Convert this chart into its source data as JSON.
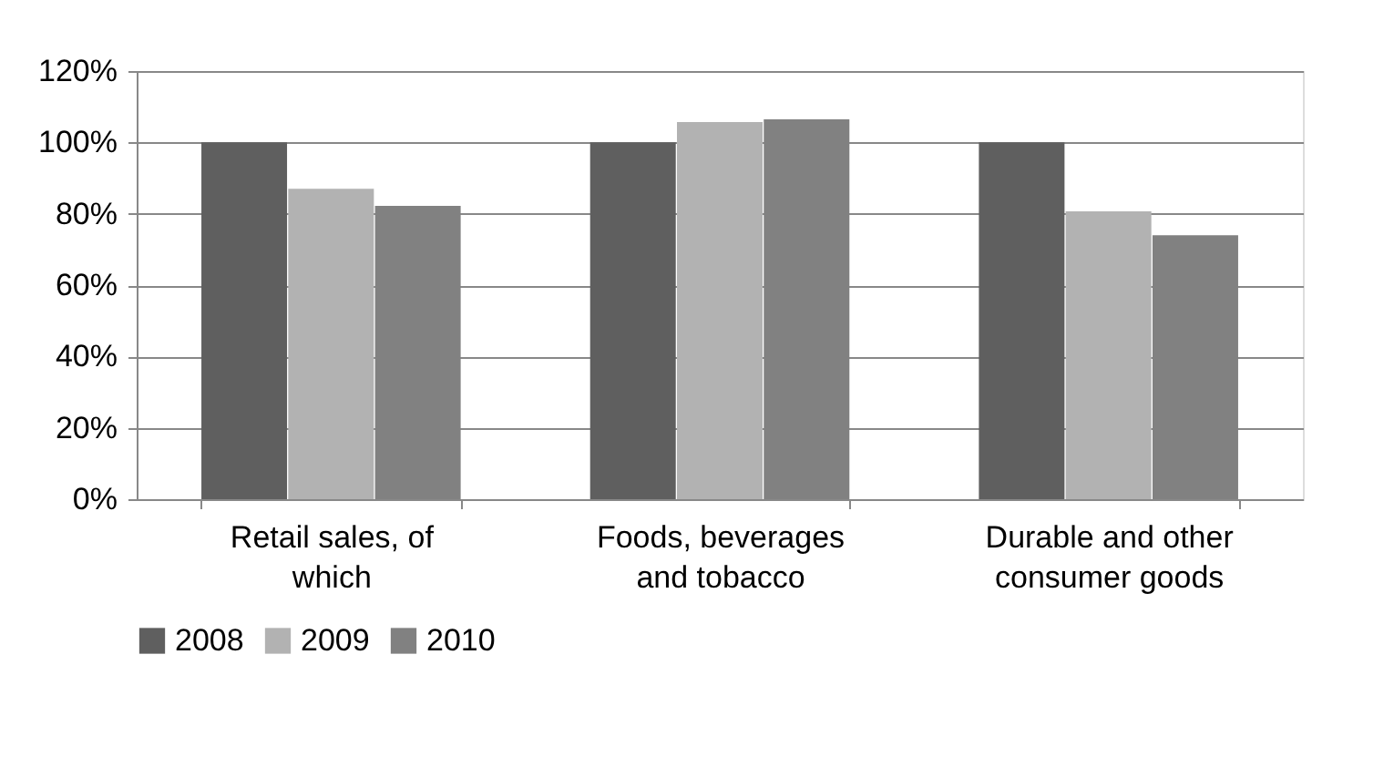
{
  "chart_data": {
    "type": "bar",
    "categories": [
      "Retail sales, of which",
      "Foods, beverages and tobacco",
      "Durable and other consumer goods"
    ],
    "series": [
      {
        "name": "2008",
        "color": "#5f5f5f",
        "values": [
          100,
          100,
          100
        ]
      },
      {
        "name": "2009",
        "color": "#b2b2b2",
        "values": [
          87,
          105.7,
          80.7
        ]
      },
      {
        "name": "2010",
        "color": "#818181",
        "values": [
          82.2,
          106.5,
          74
        ]
      }
    ],
    "ylim": [
      0,
      120
    ],
    "yticks": [
      {
        "value": 0,
        "label": "0%"
      },
      {
        "value": 20,
        "label": "20%"
      },
      {
        "value": 40,
        "label": "40%"
      },
      {
        "value": 60,
        "label": "60%"
      },
      {
        "value": 80,
        "label": "80%"
      },
      {
        "value": 100,
        "label": "100%"
      },
      {
        "value": 120,
        "label": "120%"
      }
    ],
    "grid": "y",
    "legend": "bottom"
  }
}
